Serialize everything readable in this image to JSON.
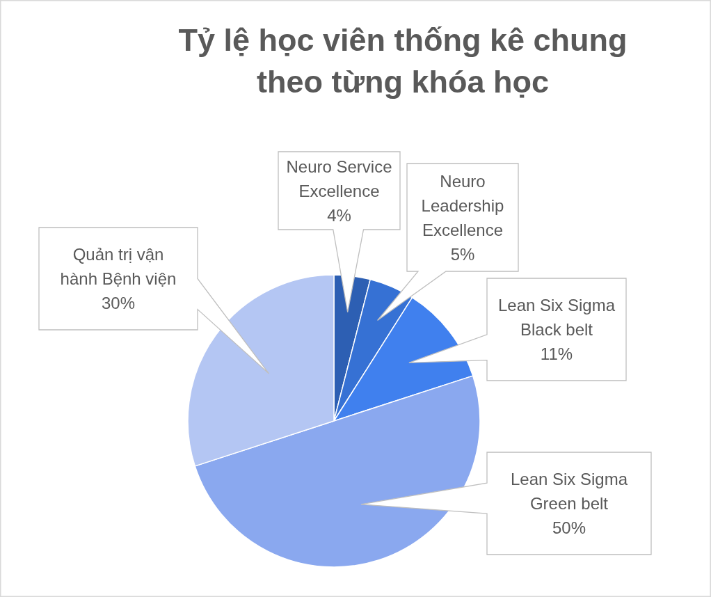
{
  "chart_data": {
    "type": "pie",
    "title": "Tỷ lệ học viên thống kê chung theo từng khóa học",
    "categories": [
      "Neuro Service Excellence",
      "Neuro Leadership Excellence",
      "Lean Six Sigma Black belt",
      "Lean Six Sigma Green belt",
      "Quản trị vận hành Bệnh viện"
    ],
    "values": [
      4,
      5,
      11,
      50,
      30
    ],
    "colors": [
      "#2d5fb3",
      "#3671d4",
      "#4080ee",
      "#8aa8ef",
      "#b4c6f3"
    ],
    "value_labels": [
      "4%",
      "5%",
      "11%",
      "50%",
      "30%"
    ]
  }
}
